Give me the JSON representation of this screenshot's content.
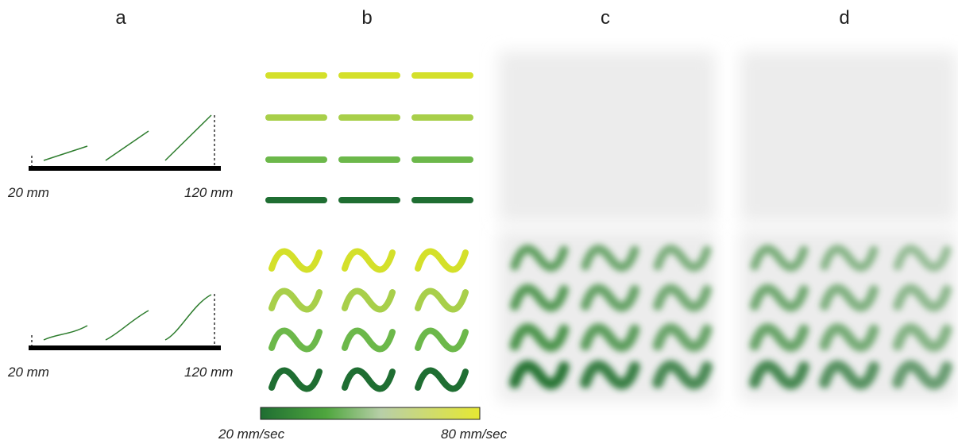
{
  "panels": [
    {
      "label": "a"
    },
    {
      "label": "b"
    },
    {
      "label": "c"
    },
    {
      "label": "d"
    }
  ],
  "panel_a": {
    "rows": [
      {
        "start_label": "20 mm",
        "end_label": "120 mm"
      },
      {
        "start_label": "20 mm",
        "end_label": "120 mm"
      }
    ]
  },
  "colorbar": {
    "min_label": "20 mm/sec",
    "max_label": "80 mm/sec"
  }
}
